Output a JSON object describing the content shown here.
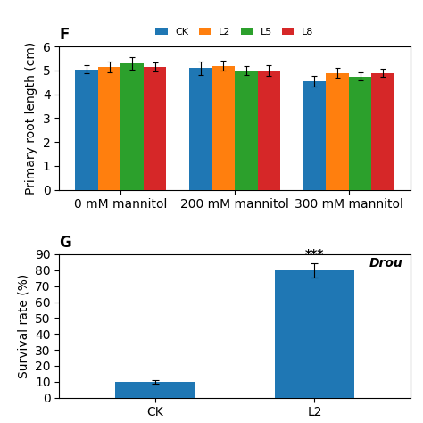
{
  "chart_data": [
    {
      "type": "bar",
      "title": "F",
      "categories": [
        "0 mM mannitol",
        "200 mM mannitol",
        "300 mM mannitol"
      ],
      "series": [
        {
          "name": "CK",
          "values": [
            5.05,
            5.1,
            4.55
          ],
          "errors": [
            0.18,
            0.28,
            0.22
          ]
        },
        {
          "name": "L2",
          "values": [
            5.15,
            5.2,
            4.9
          ],
          "errors": [
            0.22,
            0.2,
            0.22
          ]
        },
        {
          "name": "L5",
          "values": [
            5.3,
            5.0,
            4.75
          ],
          "errors": [
            0.25,
            0.2,
            0.18
          ]
        },
        {
          "name": "L8",
          "values": [
            5.15,
            5.0,
            4.9
          ],
          "errors": [
            0.2,
            0.22,
            0.18
          ]
        }
      ],
      "y_label": "Primary root length (cm)",
      "ylim": [
        0,
        6
      ],
      "yticks": [
        0,
        1,
        2,
        3,
        4,
        5,
        6
      ],
      "legend": "upper center"
    },
    {
      "type": "bar",
      "title": "G",
      "categories": [
        "CK",
        "L2"
      ],
      "values": [
        10.0,
        80.0
      ],
      "errors": [
        1.2,
        4.5
      ],
      "y_label": "Survival rate (%)",
      "ylim": [
        0,
        90
      ],
      "yticks": [
        0,
        10,
        20,
        30,
        40,
        50,
        60,
        70,
        80,
        90
      ],
      "annotations": [
        {
          "text": "Drou"
        },
        {
          "text": "***",
          "category": "L2"
        }
      ]
    }
  ]
}
